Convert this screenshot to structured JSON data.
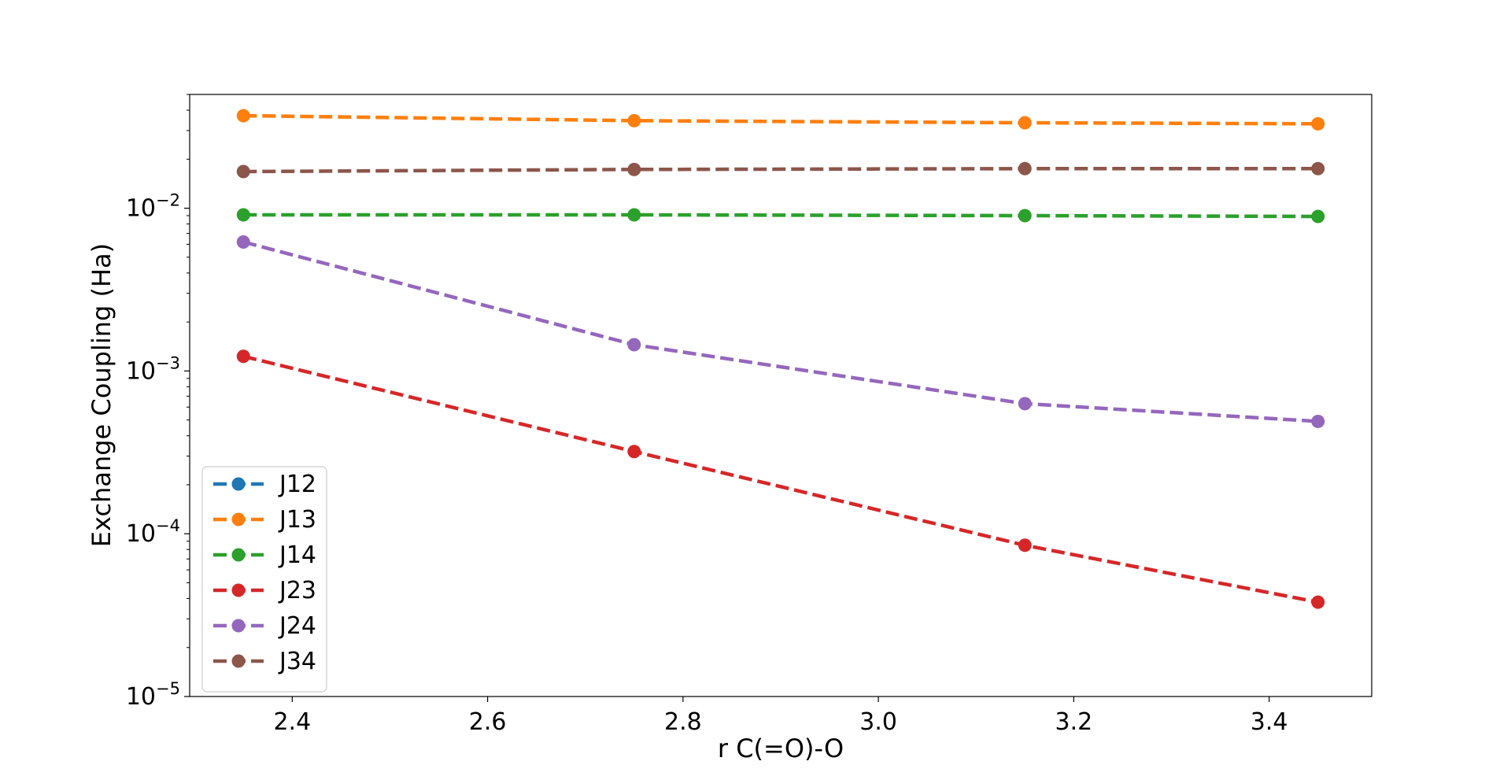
{
  "chart_data": {
    "type": "line",
    "xlabel": "r C(=O)-O",
    "ylabel": "Exchange Coupling (Ha)",
    "yscale": "log",
    "xlim": [
      2.295,
      3.505
    ],
    "ylim": [
      1e-05,
      0.05
    ],
    "x_ticks": [
      2.4,
      2.6,
      2.8,
      3.0,
      3.2,
      3.4
    ],
    "x_tick_labels": [
      "2.4",
      "2.6",
      "2.8",
      "3.0",
      "3.2",
      "3.4"
    ],
    "y_ticks": [
      1e-05,
      0.0001,
      0.001,
      0.01
    ],
    "y_tick_bases": [
      "10",
      "10",
      "10",
      "10"
    ],
    "y_tick_exponents": [
      "−5",
      "−4",
      "−3",
      "−2"
    ],
    "grid": false,
    "legend_position": "lower-left",
    "line_style": "dashed",
    "marker": "circle",
    "x": [
      2.35,
      2.75,
      3.15,
      3.45
    ],
    "series": [
      {
        "name": "J12",
        "color": "#1f77b4",
        "values": [
          null,
          null,
          null,
          null
        ]
      },
      {
        "name": "J13",
        "color": "#ff7f0e",
        "values": [
          0.037,
          0.0345,
          0.0335,
          0.033
        ]
      },
      {
        "name": "J14",
        "color": "#2ca02c",
        "values": [
          0.0091,
          0.0091,
          0.009,
          0.0089
        ]
      },
      {
        "name": "J23",
        "color": "#d62728",
        "values": [
          0.00123,
          0.00032,
          8.5e-05,
          3.8e-05
        ]
      },
      {
        "name": "J24",
        "color": "#9467bd",
        "values": [
          0.0062,
          0.00145,
          0.00063,
          0.00049
        ]
      },
      {
        "name": "J34",
        "color": "#8c564b",
        "values": [
          0.0168,
          0.0173,
          0.0175,
          0.0175
        ]
      }
    ]
  }
}
